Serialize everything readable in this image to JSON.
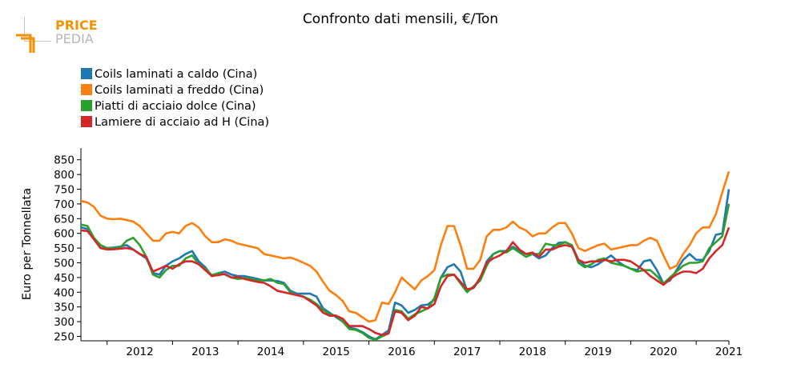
{
  "logo": {
    "line1": "PRICE",
    "line2": "PEDIA",
    "color_primary": "#f39200",
    "color_secondary": "#b7b7b7"
  },
  "chart_data": {
    "type": "line",
    "title": "Confronto dati mensili, €/Ton",
    "xlabel": "",
    "ylabel": "Euro per Tonnellata",
    "xlim": [
      2011.6,
      2021.5
    ],
    "ylim": [
      235,
      890
    ],
    "yticks": [
      250,
      300,
      350,
      400,
      450,
      500,
      550,
      600,
      650,
      700,
      750,
      800,
      850
    ],
    "xticks": [
      2012,
      2013,
      2014,
      2015,
      2016,
      2017,
      2018,
      2019,
      2020,
      2021
    ],
    "grid": false,
    "legend_position": "top-left",
    "x": [
      2011.6,
      2011.7,
      2011.8,
      2011.9,
      2012.0,
      2012.1,
      2012.2,
      2012.3,
      2012.4,
      2012.5,
      2012.6,
      2012.7,
      2012.8,
      2012.9,
      2013.0,
      2013.1,
      2013.2,
      2013.3,
      2013.4,
      2013.5,
      2013.6,
      2013.7,
      2013.8,
      2013.9,
      2014.0,
      2014.1,
      2014.2,
      2014.3,
      2014.4,
      2014.5,
      2014.6,
      2014.7,
      2014.8,
      2014.9,
      2015.0,
      2015.1,
      2015.2,
      2015.3,
      2015.4,
      2015.5,
      2015.6,
      2015.7,
      2015.8,
      2015.9,
      2016.0,
      2016.1,
      2016.2,
      2016.3,
      2016.4,
      2016.5,
      2016.6,
      2016.7,
      2016.8,
      2016.9,
      2017.0,
      2017.1,
      2017.2,
      2017.3,
      2017.4,
      2017.5,
      2017.6,
      2017.7,
      2017.8,
      2017.9,
      2018.0,
      2018.1,
      2018.2,
      2018.3,
      2018.4,
      2018.5,
      2018.6,
      2018.7,
      2018.8,
      2018.9,
      2019.0,
      2019.1,
      2019.2,
      2019.3,
      2019.4,
      2019.5,
      2019.6,
      2019.7,
      2019.8,
      2019.9,
      2020.0,
      2020.1,
      2020.2,
      2020.3,
      2020.4,
      2020.5,
      2020.6,
      2020.7,
      2020.8,
      2020.9,
      2021.0,
      2021.1,
      2021.2,
      2021.3,
      2021.4,
      2021.5
    ],
    "series": [
      {
        "name": "Coils laminati a caldo (Cina)",
        "color": "#1f77b4",
        "values": [
          620,
          615,
          580,
          550,
          550,
          552,
          555,
          560,
          545,
          530,
          515,
          465,
          460,
          490,
          505,
          515,
          530,
          540,
          505,
          485,
          455,
          465,
          470,
          460,
          455,
          455,
          450,
          445,
          440,
          440,
          438,
          432,
          405,
          395,
          395,
          395,
          385,
          345,
          330,
          315,
          300,
          280,
          275,
          265,
          250,
          240,
          255,
          270,
          365,
          355,
          330,
          340,
          355,
          358,
          375,
          450,
          485,
          495,
          470,
          405,
          415,
          445,
          505,
          530,
          540,
          540,
          555,
          540,
          530,
          530,
          515,
          525,
          550,
          568,
          570,
          560,
          510,
          490,
          485,
          495,
          510,
          525,
          505,
          490,
          480,
          475,
          505,
          510,
          475,
          430,
          440,
          475,
          510,
          530,
          510,
          510,
          540,
          595,
          600,
          750
        ]
      },
      {
        "name": "Coils laminati a freddo (Cina)",
        "color": "#ff7f0e",
        "values": [
          710,
          705,
          690,
          660,
          650,
          648,
          650,
          645,
          640,
          625,
          600,
          575,
          575,
          600,
          605,
          600,
          625,
          635,
          620,
          590,
          570,
          570,
          580,
          575,
          565,
          560,
          555,
          550,
          530,
          525,
          520,
          515,
          518,
          510,
          500,
          490,
          470,
          435,
          405,
          390,
          370,
          335,
          330,
          315,
          300,
          305,
          365,
          360,
          400,
          450,
          430,
          410,
          440,
          455,
          475,
          560,
          625,
          625,
          560,
          480,
          480,
          510,
          590,
          612,
          612,
          620,
          640,
          620,
          610,
          590,
          600,
          600,
          620,
          635,
          635,
          600,
          550,
          540,
          550,
          560,
          565,
          545,
          550,
          555,
          560,
          560,
          575,
          585,
          575,
          525,
          480,
          490,
          530,
          560,
          600,
          620,
          620,
          665,
          740,
          810
        ]
      },
      {
        "name": "Piatti di acciaio dolce (Cina)",
        "color": "#2ca02c",
        "values": [
          630,
          625,
          585,
          560,
          550,
          550,
          552,
          575,
          585,
          560,
          520,
          460,
          450,
          475,
          490,
          490,
          515,
          525,
          495,
          480,
          458,
          465,
          460,
          450,
          445,
          448,
          445,
          440,
          440,
          445,
          432,
          428,
          400,
          390,
          385,
          375,
          360,
          340,
          325,
          320,
          300,
          275,
          272,
          262,
          245,
          238,
          250,
          260,
          340,
          335,
          310,
          325,
          335,
          345,
          380,
          450,
          460,
          460,
          430,
          400,
          420,
          440,
          490,
          530,
          540,
          535,
          550,
          535,
          520,
          530,
          530,
          565,
          560,
          560,
          570,
          560,
          500,
          485,
          495,
          510,
          515,
          500,
          495,
          490,
          480,
          470,
          475,
          475,
          455,
          430,
          450,
          470,
          490,
          500,
          500,
          505,
          550,
          570,
          590,
          700
        ]
      },
      {
        "name": "Lamiere di acciaio ad H (Cina)",
        "color": "#d62728",
        "values": [
          610,
          608,
          580,
          550,
          545,
          546,
          548,
          550,
          545,
          530,
          520,
          470,
          480,
          490,
          480,
          495,
          505,
          505,
          495,
          475,
          455,
          458,
          462,
          450,
          452,
          445,
          440,
          435,
          432,
          420,
          405,
          400,
          395,
          390,
          385,
          370,
          355,
          330,
          320,
          320,
          310,
          285,
          285,
          285,
          275,
          262,
          255,
          260,
          335,
          330,
          305,
          320,
          350,
          345,
          360,
          420,
          455,
          460,
          435,
          410,
          415,
          450,
          500,
          515,
          525,
          540,
          570,
          545,
          530,
          535,
          520,
          545,
          545,
          555,
          560,
          555,
          510,
          500,
          505,
          505,
          510,
          505,
          510,
          510,
          505,
          490,
          475,
          455,
          440,
          425,
          445,
          460,
          470,
          470,
          465,
          480,
          515,
          540,
          560,
          620
        ]
      }
    ]
  }
}
